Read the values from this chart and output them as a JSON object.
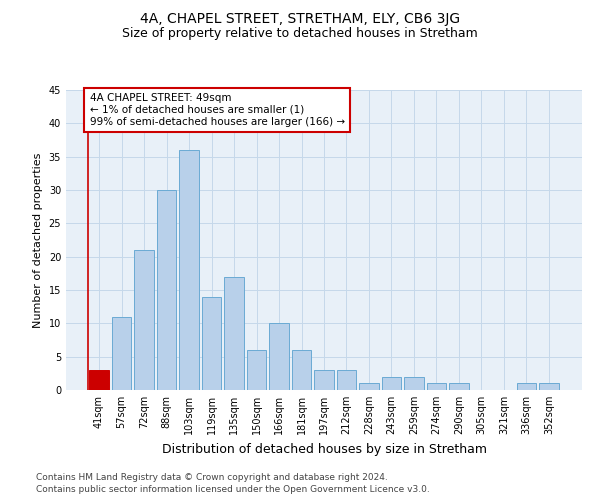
{
  "title1": "4A, CHAPEL STREET, STRETHAM, ELY, CB6 3JG",
  "title2": "Size of property relative to detached houses in Stretham",
  "xlabel": "Distribution of detached houses by size in Stretham",
  "ylabel": "Number of detached properties",
  "categories": [
    "41sqm",
    "57sqm",
    "72sqm",
    "88sqm",
    "103sqm",
    "119sqm",
    "135sqm",
    "150sqm",
    "166sqm",
    "181sqm",
    "197sqm",
    "212sqm",
    "228sqm",
    "243sqm",
    "259sqm",
    "274sqm",
    "290sqm",
    "305sqm",
    "321sqm",
    "336sqm",
    "352sqm"
  ],
  "values": [
    3,
    11,
    21,
    30,
    36,
    14,
    17,
    6,
    10,
    6,
    3,
    3,
    1,
    2,
    2,
    1,
    1,
    0,
    0,
    1,
    1
  ],
  "bar_color": "#b8d0ea",
  "bar_edge_color": "#6aaad4",
  "highlight_bar_index": 0,
  "highlight_bar_color": "#cc0000",
  "highlight_bar_edge_color": "#cc0000",
  "annotation_box_text": "4A CHAPEL STREET: 49sqm\n← 1% of detached houses are smaller (1)\n99% of semi-detached houses are larger (166) →",
  "annotation_box_color": "#ffffff",
  "annotation_box_edge_color": "#cc0000",
  "vline_color": "#cc0000",
  "ylim": [
    0,
    45
  ],
  "yticks": [
    0,
    5,
    10,
    15,
    20,
    25,
    30,
    35,
    40,
    45
  ],
  "grid_color": "#c5d8ea",
  "background_color": "#e8f0f8",
  "footer1": "Contains HM Land Registry data © Crown copyright and database right 2024.",
  "footer2": "Contains public sector information licensed under the Open Government Licence v3.0.",
  "title1_fontsize": 10,
  "title2_fontsize": 9,
  "xlabel_fontsize": 9,
  "ylabel_fontsize": 8,
  "tick_fontsize": 7,
  "annotation_fontsize": 7.5,
  "footer_fontsize": 6.5
}
